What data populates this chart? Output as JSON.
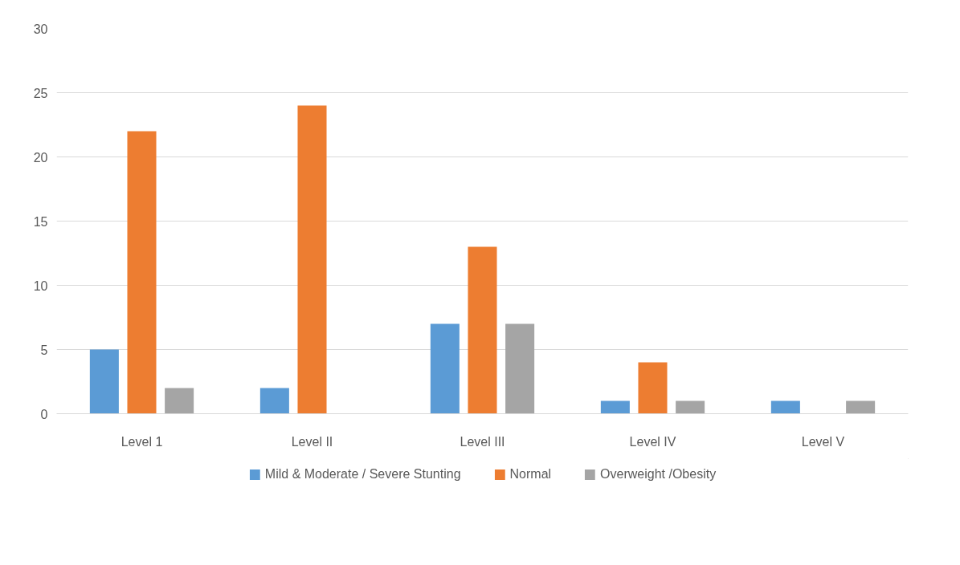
{
  "chart_data": {
    "type": "bar",
    "categories": [
      "Level 1",
      "Level II",
      "Level III",
      "Level IV",
      "Level V"
    ],
    "series": [
      {
        "name": "Mild & Moderate / Severe Stunting",
        "color": "#5b9bd5",
        "values": [
          5,
          2,
          7,
          1,
          1
        ]
      },
      {
        "name": "Normal",
        "color": "#ed7d31",
        "values": [
          22,
          24,
          13,
          4,
          0
        ]
      },
      {
        "name": "Overweight /Obesity",
        "color": "#a5a5a5",
        "values": [
          2,
          0,
          7,
          1,
          1
        ]
      }
    ],
    "ylim": [
      0,
      30
    ],
    "yticks": [
      0,
      5,
      10,
      15,
      20,
      25,
      30
    ],
    "grid": "y",
    "legend": "bottom"
  }
}
